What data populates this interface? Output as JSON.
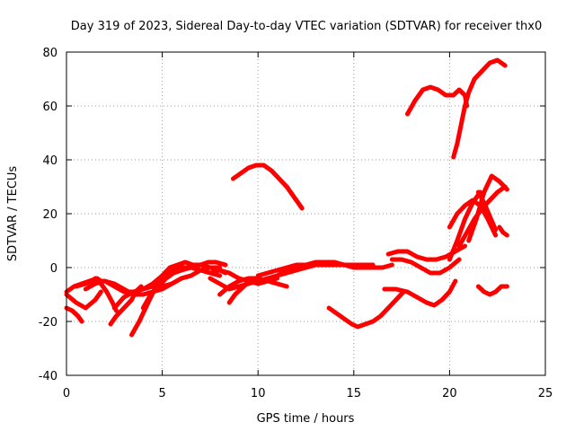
{
  "chart_data": {
    "type": "line",
    "title": "Day 319 of 2023, Sidereal Day-to-day VTEC variation (SDTVAR) for receiver thx0",
    "xlabel": "GPS time / hours",
    "ylabel": "SDTVAR / TECUs",
    "xlim": [
      0,
      25
    ],
    "ylim": [
      -40,
      80
    ],
    "xticks": [
      0,
      5,
      10,
      15,
      20,
      25
    ],
    "xtick_labels": [
      "0",
      "5",
      "10",
      "15",
      "20",
      "25"
    ],
    "yticks": [
      -40,
      -20,
      0,
      20,
      40,
      60,
      80
    ],
    "ytick_labels": [
      "-40",
      "-20",
      "0",
      "20",
      "40",
      "60",
      "80"
    ],
    "grid": true,
    "legend": "none",
    "series_color": "#ff0000",
    "series": [
      {
        "name": "trace-1",
        "x": [
          0.0,
          0.4,
          0.8,
          1.2,
          1.6,
          1.8
        ],
        "y": [
          -9,
          -7,
          -6,
          -5,
          -4,
          -5
        ]
      },
      {
        "name": "trace-2",
        "x": [
          0.0,
          0.3,
          0.6,
          0.8
        ],
        "y": [
          -15,
          -16,
          -18,
          -20
        ]
      },
      {
        "name": "trace-3",
        "x": [
          0.0,
          0.5,
          1.0,
          1.5,
          1.8
        ],
        "y": [
          -10,
          -13,
          -15,
          -12,
          -9
        ]
      },
      {
        "name": "trace-4",
        "x": [
          0.5,
          1.0,
          1.5,
          2.0,
          2.5,
          3.0,
          3.5,
          4.0,
          4.5,
          5.0,
          5.5,
          6.0,
          6.5,
          7.0,
          7.5,
          8.0
        ],
        "y": [
          -7,
          -6,
          -5,
          -5,
          -7,
          -9,
          -9,
          -8,
          -6,
          -3,
          -1,
          0,
          0,
          -1,
          -2,
          -3
        ]
      },
      {
        "name": "trace-5",
        "x": [
          1.0,
          1.5,
          2.0,
          2.5,
          3.0,
          3.5,
          4.0,
          4.5,
          5.0,
          5.5,
          6.0,
          6.5
        ],
        "y": [
          -8,
          -6,
          -5,
          -6,
          -8,
          -10,
          -10,
          -9,
          -8,
          -6,
          -4,
          -3
        ]
      },
      {
        "name": "trace-6",
        "x": [
          1.5,
          1.8,
          2.1,
          2.4,
          2.6
        ],
        "y": [
          -4,
          -6,
          -9,
          -13,
          -16
        ]
      },
      {
        "name": "trace-7",
        "x": [
          2.3,
          2.6,
          3.0,
          3.4,
          3.6,
          3.9
        ],
        "y": [
          -21,
          -18,
          -15,
          -12,
          -9,
          -7
        ]
      },
      {
        "name": "trace-8",
        "x": [
          2.5,
          3.0,
          3.5,
          4.0,
          4.5,
          5.0,
          5.5,
          6.0,
          6.5,
          7.0,
          7.5,
          8.0
        ],
        "y": [
          -15,
          -11,
          -9,
          -8,
          -7,
          -7,
          -6,
          -4,
          -3,
          -1,
          0,
          0
        ]
      },
      {
        "name": "trace-9",
        "x": [
          3.4,
          3.8,
          4.2,
          4.6,
          5.0,
          5.4,
          5.8,
          6.2,
          6.6,
          7.0,
          7.4,
          7.8,
          8.3
        ],
        "y": [
          -25,
          -20,
          -14,
          -8,
          -3,
          0,
          1,
          2,
          1,
          1,
          2,
          2,
          1
        ]
      },
      {
        "name": "trace-10",
        "x": [
          4.0,
          4.4,
          4.8,
          5.2,
          5.6,
          6.0,
          6.5,
          7.0,
          7.5,
          8.0,
          8.3
        ],
        "y": [
          -15,
          -10,
          -7,
          -4,
          -2,
          -1,
          0,
          1,
          0,
          -1,
          -2
        ]
      },
      {
        "name": "trace-11",
        "x": [
          7.5,
          8.0,
          8.5,
          9.0,
          9.5,
          10.0,
          10.5,
          11.0,
          11.5,
          12.0,
          12.5,
          13.0,
          13.5,
          14.0
        ],
        "y": [
          -4,
          -6,
          -8,
          -7,
          -6,
          -5,
          -4,
          -3,
          -2,
          -1,
          0,
          1,
          1,
          1
        ]
      },
      {
        "name": "trace-12",
        "x": [
          8.0,
          8.5,
          9.0,
          9.5,
          10.0,
          10.5,
          11.0,
          11.5
        ],
        "y": [
          -10,
          -7,
          -5,
          -4,
          -4,
          -5,
          -6,
          -7
        ]
      },
      {
        "name": "trace-13",
        "x": [
          8.5,
          8.8,
          9.1,
          9.4,
          9.7,
          10.0
        ],
        "y": [
          -13,
          -10,
          -8,
          -6,
          -5,
          -5
        ]
      },
      {
        "name": "trace-14",
        "x": [
          7.5,
          8.0,
          8.5,
          9.0,
          9.5,
          10.0,
          10.5,
          11.0
        ],
        "y": [
          -2,
          -1,
          -2,
          -4,
          -5,
          -6,
          -5,
          -4
        ]
      },
      {
        "name": "trace-15",
        "x": [
          10.0,
          10.5,
          11.0,
          11.5,
          12.0,
          12.5,
          13.0,
          13.5,
          14.0,
          14.5,
          15.0,
          15.5,
          16.0,
          16.5,
          17.0
        ],
        "y": [
          -6,
          -5,
          -3,
          -1,
          0,
          0,
          1,
          1,
          1,
          1,
          0,
          0,
          0,
          0,
          1
        ]
      },
      {
        "name": "trace-16",
        "x": [
          10.0,
          10.5,
          11.0,
          11.5,
          12.0,
          12.5,
          13.0,
          13.5,
          14.0,
          14.5,
          15.0,
          15.5,
          16.0
        ],
        "y": [
          -3,
          -2,
          -1,
          0,
          1,
          1,
          2,
          2,
          2,
          1,
          1,
          1,
          1
        ]
      },
      {
        "name": "trace-17",
        "x": [
          8.7,
          9.1,
          9.5,
          9.9,
          10.3,
          10.7,
          11.1,
          11.5,
          11.9,
          12.3
        ],
        "y": [
          33,
          35,
          37,
          38,
          38,
          36,
          33,
          30,
          26,
          22
        ]
      },
      {
        "name": "trace-18",
        "x": [
          13.7,
          14.1,
          14.5,
          14.9,
          15.2,
          15.6,
          16.0,
          16.4,
          16.8,
          17.2,
          17.6
        ],
        "y": [
          -15,
          -17,
          -19,
          -21,
          -22,
          -21,
          -20,
          -18,
          -15,
          -12,
          -9
        ]
      },
      {
        "name": "trace-19",
        "x": [
          16.8,
          17.3,
          17.8,
          18.3,
          18.8,
          19.3,
          19.8,
          20.3,
          20.8
        ],
        "y": [
          5,
          6,
          6,
          4,
          3,
          3,
          4,
          6,
          8
        ]
      },
      {
        "name": "trace-20",
        "x": [
          17.0,
          17.5,
          18.0,
          18.5,
          19.0,
          19.5,
          20.0,
          20.5
        ],
        "y": [
          3,
          3,
          2,
          0,
          -2,
          -2,
          0,
          3
        ]
      },
      {
        "name": "trace-21",
        "x": [
          16.6,
          17.2,
          17.8,
          18.3,
          18.8,
          19.2,
          19.6,
          20.0,
          20.3
        ],
        "y": [
          -8,
          -8,
          -9,
          -11,
          -13,
          -14,
          -12,
          -9,
          -5
        ]
      },
      {
        "name": "trace-22",
        "x": [
          17.8,
          18.2,
          18.6,
          19.0,
          19.4,
          19.8,
          20.2,
          20.5,
          20.8,
          20.9
        ],
        "y": [
          57,
          62,
          66,
          67,
          66,
          64,
          64,
          66,
          64,
          60
        ]
      },
      {
        "name": "trace-23",
        "x": [
          20.2,
          20.4,
          20.6,
          20.8,
          21.0,
          21.3,
          21.7,
          22.1,
          22.5,
          22.9
        ],
        "y": [
          41,
          46,
          53,
          60,
          65,
          70,
          73,
          76,
          77,
          75
        ]
      },
      {
        "name": "trace-24",
        "x": [
          20.0,
          20.4,
          20.8,
          21.2,
          21.6
        ],
        "y": [
          3,
          10,
          18,
          24,
          28
        ]
      },
      {
        "name": "trace-25",
        "x": [
          20.0,
          20.4,
          20.8,
          21.2,
          21.6,
          22.0,
          22.4
        ],
        "y": [
          15,
          20,
          23,
          25,
          23,
          18,
          12
        ]
      },
      {
        "name": "trace-26",
        "x": [
          20.5,
          20.9,
          21.3,
          21.7,
          22.1,
          22.5,
          22.9
        ],
        "y": [
          8,
          13,
          18,
          22,
          25,
          28,
          30
        ]
      },
      {
        "name": "trace-27",
        "x": [
          21.0,
          21.4,
          21.8,
          22.2,
          22.6,
          23.0
        ],
        "y": [
          10,
          18,
          28,
          34,
          32,
          29
        ]
      },
      {
        "name": "trace-28",
        "x": [
          21.5,
          21.8,
          22.1,
          22.4
        ],
        "y": [
          28,
          24,
          19,
          14
        ]
      },
      {
        "name": "trace-29",
        "x": [
          22.6,
          22.8,
          23.0
        ],
        "y": [
          15,
          13,
          12
        ]
      },
      {
        "name": "trace-30",
        "x": [
          21.5,
          21.8,
          22.1,
          22.4,
          22.7,
          23.0
        ],
        "y": [
          -7,
          -9,
          -10,
          -9,
          -7,
          -7
        ]
      }
    ]
  }
}
